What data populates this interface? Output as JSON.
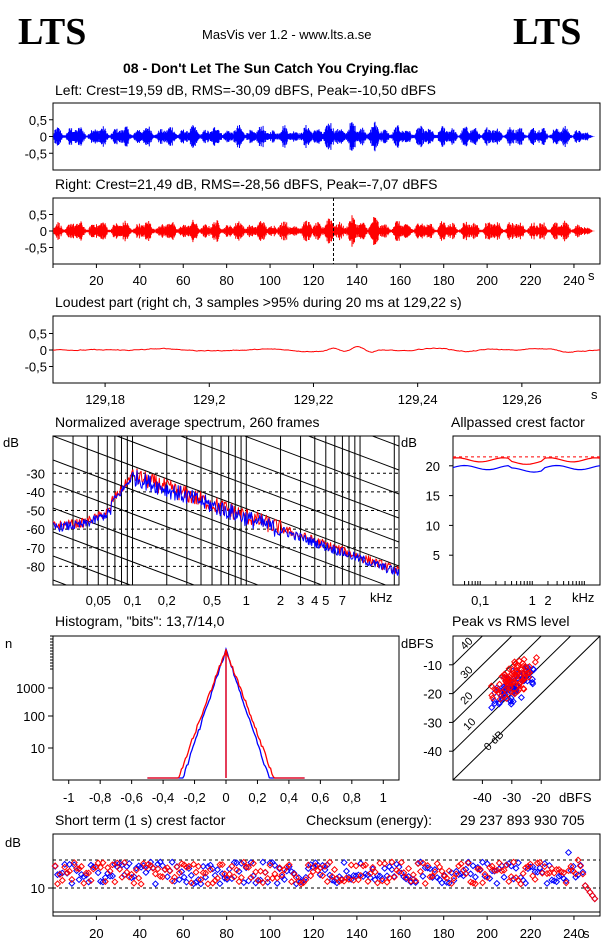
{
  "header": {
    "logo_left": "LTS",
    "logo_right": "LTS",
    "app_title": "MasVis ver 1.2 - www.lts.a.se",
    "file_title": "08 - Don't Let The Sun Catch You Crying.flac"
  },
  "colors": {
    "left": "#0000ff",
    "right": "#ff0000"
  },
  "chart_data": [
    {
      "type": "line",
      "title": "Left: Crest=19,59 dB, RMS=-30,09 dBFS, Peak=-10,50 dBFS",
      "yticks": [
        "0,5",
        "0",
        "-0,5"
      ],
      "ylim": [
        -1,
        1
      ],
      "duration_s": 252,
      "peak": 0.3,
      "series": [
        {
          "name": "Left"
        }
      ]
    },
    {
      "type": "line",
      "title": "Right: Crest=21,49 dB, RMS=-28,56 dBFS, Peak=-7,07 dBFS",
      "yticks": [
        "0,5",
        "0",
        "-0,5"
      ],
      "ylim": [
        -1,
        1
      ],
      "xticks": [
        "20",
        "40",
        "60",
        "80",
        "100",
        "120",
        "140",
        "160",
        "180",
        "200",
        "220",
        "240"
      ],
      "xunit": "s",
      "marker_s": 129.22,
      "series": [
        {
          "name": "Right"
        }
      ]
    },
    {
      "type": "line",
      "title": "Loudest part (right ch, 3 samples >95% during 20 ms at 129,22 s)",
      "yticks": [
        "0,5",
        "0",
        "-0,5"
      ],
      "xticks": [
        "129,18",
        "129,2",
        "129,22",
        "129,24",
        "129,26"
      ],
      "xunit": "s",
      "xlim": [
        129.17,
        129.275
      ]
    },
    {
      "type": "line",
      "title": "Normalized average spectrum, 260 frames",
      "ylabel": "dB",
      "yticks": [
        "-30",
        "-40",
        "-50",
        "-60",
        "-70",
        "-80"
      ],
      "xticks": [
        "0,05",
        "0,1",
        "0,2",
        "0,5",
        "1",
        "2",
        "3",
        "4",
        "5",
        "7"
      ],
      "xunit": "kHz",
      "xlim": [
        0.02,
        22
      ],
      "ylim": [
        -90,
        -10
      ]
    },
    {
      "type": "line",
      "title": "Allpassed crest factor",
      "ylabel": "dB",
      "yticks": [
        "20",
        "15",
        "10",
        "5"
      ],
      "xticks": [
        "0,1",
        "1",
        "2"
      ],
      "xunit": "kHz",
      "ylim": [
        0,
        25
      ],
      "ref_db": 21.5,
      "series": [
        {
          "name": "Left",
          "level": 19.7
        },
        {
          "name": "Right",
          "level": 21.0
        }
      ]
    },
    {
      "type": "line",
      "title": "Histogram, \"bits\": 13,7/14,0",
      "ylabel": "n",
      "yticks": [
        "1000",
        "100",
        "10"
      ],
      "xticks": [
        "-1",
        "-0,8",
        "-0,6",
        "-0,4",
        "-0,2",
        "0",
        "0,2",
        "0,4",
        "0,6",
        "0,8",
        "1"
      ],
      "xlim": [
        -1.1,
        1.1
      ]
    },
    {
      "type": "scatter",
      "title": "Peak vs RMS level",
      "ylabel": "dBFS",
      "xlabel": "dBFS",
      "yticks": [
        "-10",
        "-20",
        "-30",
        "-40"
      ],
      "xticks": [
        "-40",
        "-30",
        "-20"
      ],
      "diag_labels": [
        "40",
        "30",
        "20",
        "10",
        "0 dB"
      ],
      "xlim": [
        -50,
        0
      ],
      "ylim": [
        -50,
        0
      ]
    },
    {
      "type": "scatter",
      "title": "Short term (1 s) crest factor",
      "ylabel": "dB",
      "yticks": [
        "10"
      ],
      "xticks": [
        "20",
        "40",
        "60",
        "80",
        "100",
        "120",
        "140",
        "160",
        "180",
        "200",
        "220",
        "240"
      ],
      "xunit": "s",
      "checksum_label": "Checksum (energy):",
      "checksum_value": "29 237 893 930 705"
    }
  ]
}
